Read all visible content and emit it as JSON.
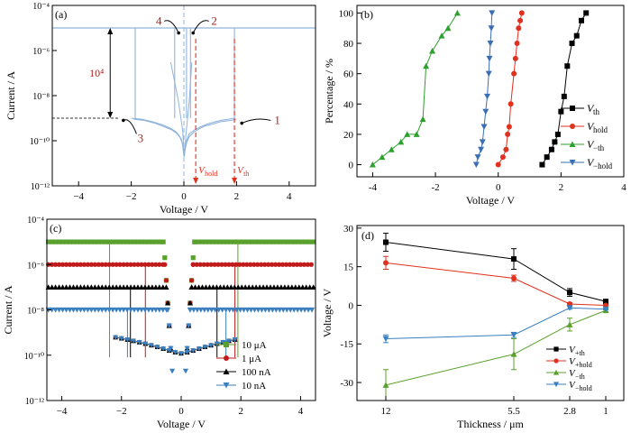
{
  "chart_data": [
    {
      "panel_label": "(a)",
      "type": "line",
      "xlabel": "Voltage / V",
      "ylabel": "Current / A",
      "xlim": [
        -5,
        5
      ],
      "ylim": [
        1e-12,
        0.0001
      ],
      "y_scale": "log",
      "x_ticks": [
        "−4",
        "−2",
        "0",
        "2",
        "4"
      ],
      "y_ticks": [
        "10⁻¹²",
        "10⁻¹⁰",
        "10⁻⁸",
        "10⁻⁶",
        "10⁻⁴"
      ],
      "compliance_current": 1e-05,
      "off_current_level": 1e-09,
      "series_color": "#8fb4dc",
      "sweeps": [
        {
          "x": [
            -2.0,
            -1.6,
            -1.2,
            -0.8,
            -0.5,
            -0.3,
            -0.15,
            -0.05,
            0.0,
            0.1,
            0.2,
            0.4,
            0.6,
            0.8,
            1.0,
            1.4,
            1.7,
            1.9
          ],
          "y": [
            1e-09,
            9e-10,
            7e-10,
            5e-10,
            3.5e-10,
            2.5e-10,
            1.5e-10,
            7e-11,
            2e-11,
            1e-10,
            2e-10,
            3e-10,
            4e-10,
            5e-10,
            6e-10,
            8e-10,
            9e-10,
            1e-09
          ]
        },
        {
          "x": [
            -1.9,
            -1.5,
            -1.1,
            -0.7,
            -0.45,
            -0.25,
            -0.1,
            -0.03,
            0.02,
            0.1,
            0.2,
            0.4,
            0.6,
            0.8,
            1.1,
            1.4,
            1.8,
            2.0
          ],
          "y": [
            9e-10,
            8e-10,
            6e-10,
            4e-10,
            3e-10,
            2e-10,
            1.2e-10,
            6e-11,
            3e-11,
            8e-11,
            1.5e-10,
            2.5e-10,
            3.5e-10,
            4.5e-10,
            5.5e-10,
            7e-10,
            8e-10,
            9e-10
          ]
        }
      ],
      "spikes_x": [
        -1.85,
        -0.35,
        0.1,
        0.25,
        1.92
      ],
      "threshold_lines": [
        {
          "x": 0.45,
          "label_main": "V",
          "label_sub": "hold",
          "color": "#e0301e"
        },
        {
          "x": 1.92,
          "label_main": "V",
          "label_sub": "th",
          "color": "#e0301e"
        }
      ],
      "zero_line": {
        "x": 0.0,
        "color": "#8fb4dc"
      },
      "ratio_label": "10⁴",
      "arrow_labels": [
        "4",
        "2",
        "3",
        "1"
      ],
      "label_color": "#b0201a"
    },
    {
      "panel_label": "(b)",
      "type": "line",
      "xlabel": "Voltage / V",
      "ylabel": "Percentage / %",
      "xlim": [
        -4.5,
        4.0
      ],
      "ylim": [
        -8,
        105
      ],
      "x_ticks": [
        -4,
        -2,
        0,
        2,
        4
      ],
      "y_ticks": [
        0,
        20,
        40,
        60,
        80,
        100
      ],
      "series": [
        {
          "name_main": "V",
          "name_sub": "th",
          "color": "#000000",
          "marker": "square",
          "x": [
            1.4,
            1.55,
            1.7,
            1.8,
            1.9,
            2.0,
            2.1,
            2.2,
            2.35,
            2.5,
            2.65,
            2.8
          ],
          "y": [
            0,
            5,
            10,
            15,
            20,
            35,
            45,
            65,
            80,
            85,
            95,
            100
          ]
        },
        {
          "name_main": "V",
          "name_sub": "hold",
          "color": "#e0301e",
          "marker": "circle",
          "x": [
            0.0,
            0.15,
            0.25,
            0.3,
            0.35,
            0.4,
            0.5,
            0.55,
            0.6,
            0.65,
            0.7,
            0.75
          ],
          "y": [
            0,
            5,
            10,
            20,
            25,
            40,
            60,
            70,
            80,
            90,
            95,
            100
          ]
        },
        {
          "name_main": "V",
          "name_sub": "−th",
          "color": "#2ea02e",
          "marker": "triangle-up",
          "x": [
            -4.0,
            -3.7,
            -3.4,
            -3.1,
            -2.9,
            -2.6,
            -2.4,
            -2.3,
            -2.1,
            -1.8,
            -1.6,
            -1.3
          ],
          "y": [
            0,
            5,
            10,
            15,
            20,
            20,
            30,
            65,
            75,
            85,
            90,
            100
          ]
        },
        {
          "name_main": "V",
          "name_sub": "−hold",
          "color": "#3a6fb5",
          "marker": "triangle-down",
          "x": [
            -0.7,
            -0.65,
            -0.55,
            -0.5,
            -0.45,
            -0.4,
            -0.35,
            -0.3,
            -0.28,
            -0.25,
            -0.22,
            -0.2
          ],
          "y": [
            0,
            5,
            10,
            15,
            25,
            35,
            45,
            60,
            70,
            80,
            90,
            100
          ]
        }
      ],
      "legend_position": "bottom-right"
    },
    {
      "panel_label": "(c)",
      "type": "scatter",
      "xlabel": "Voltage / V",
      "ylabel": "Current / A",
      "xlim": [
        -4.5,
        4.5
      ],
      "ylim": [
        1e-12,
        0.0001
      ],
      "y_scale": "log",
      "x_ticks": [
        "−4",
        "−2",
        "0",
        "2",
        "4"
      ],
      "y_ticks": [
        "10⁻¹²",
        "10⁻¹⁰",
        "10⁻⁸",
        "10⁻⁶",
        "10⁻⁴"
      ],
      "series": [
        {
          "name": "10 μA",
          "color": "#5aa02c",
          "marker": "square",
          "compliance": 1e-05,
          "on_range": [
            -2.5,
            2.0
          ],
          "hold": [
            -0.6,
            0.45
          ],
          "set": [
            -2.4,
            1.9
          ]
        },
        {
          "name": "1 μA",
          "color": "#c01a1a",
          "marker": "circle",
          "compliance": 1e-06,
          "on_range": [
            -2.3,
            2.0
          ],
          "hold": [
            -0.55,
            0.4
          ],
          "set": [
            -1.2,
            1.8
          ]
        },
        {
          "name": "100 nA",
          "color": "#000000",
          "marker": "triangle-up",
          "compliance": 1e-07,
          "on_range": [
            -2.0,
            1.8
          ],
          "hold": [
            -0.5,
            0.35
          ],
          "set": [
            -1.7,
            1.2
          ]
        },
        {
          "name": "10 nA",
          "color": "#3a7fc0",
          "marker": "triangle-down",
          "compliance": 1e-08,
          "on_range": [
            -1.8,
            1.6
          ],
          "hold": [
            -0.45,
            0.3
          ],
          "set": [
            -1.8,
            1.5
          ]
        }
      ],
      "legend_position": "bottom-right"
    },
    {
      "panel_label": "(d)",
      "type": "line",
      "xlabel": "Thickness / μm",
      "ylabel": "Voltage / V",
      "categories": [
        "12",
        "5.5",
        "2.8",
        "1"
      ],
      "ylim": [
        -37,
        31
      ],
      "y_ticks": [
        -30,
        -15,
        0,
        15,
        30
      ],
      "series": [
        {
          "name_main": "V",
          "name_sub": "+th",
          "color": "#000000",
          "marker": "square",
          "values": [
            24.5,
            18,
            5,
            1.5
          ],
          "errors": [
            3.5,
            4,
            1.5,
            0.5
          ]
        },
        {
          "name_main": "V",
          "name_sub": "+hold",
          "color": "#e0301e",
          "marker": "circle",
          "values": [
            16.5,
            10.5,
            0.5,
            0
          ],
          "errors": [
            2.5,
            1.2,
            0.5,
            0.3
          ]
        },
        {
          "name_main": "V",
          "name_sub": "−th",
          "color": "#5aa02c",
          "marker": "triangle-up",
          "values": [
            -31,
            -19,
            -7.5,
            -2
          ],
          "errors": [
            6,
            6,
            2.5,
            0.5
          ]
        },
        {
          "name_main": "V",
          "name_sub": "−hold",
          "color": "#3a7fc0",
          "marker": "triangle-down",
          "values": [
            -13,
            -11.5,
            -1,
            -1.5
          ],
          "errors": [
            1.5,
            1,
            0.5,
            0.3
          ]
        }
      ],
      "legend_position": "bottom-right"
    }
  ]
}
